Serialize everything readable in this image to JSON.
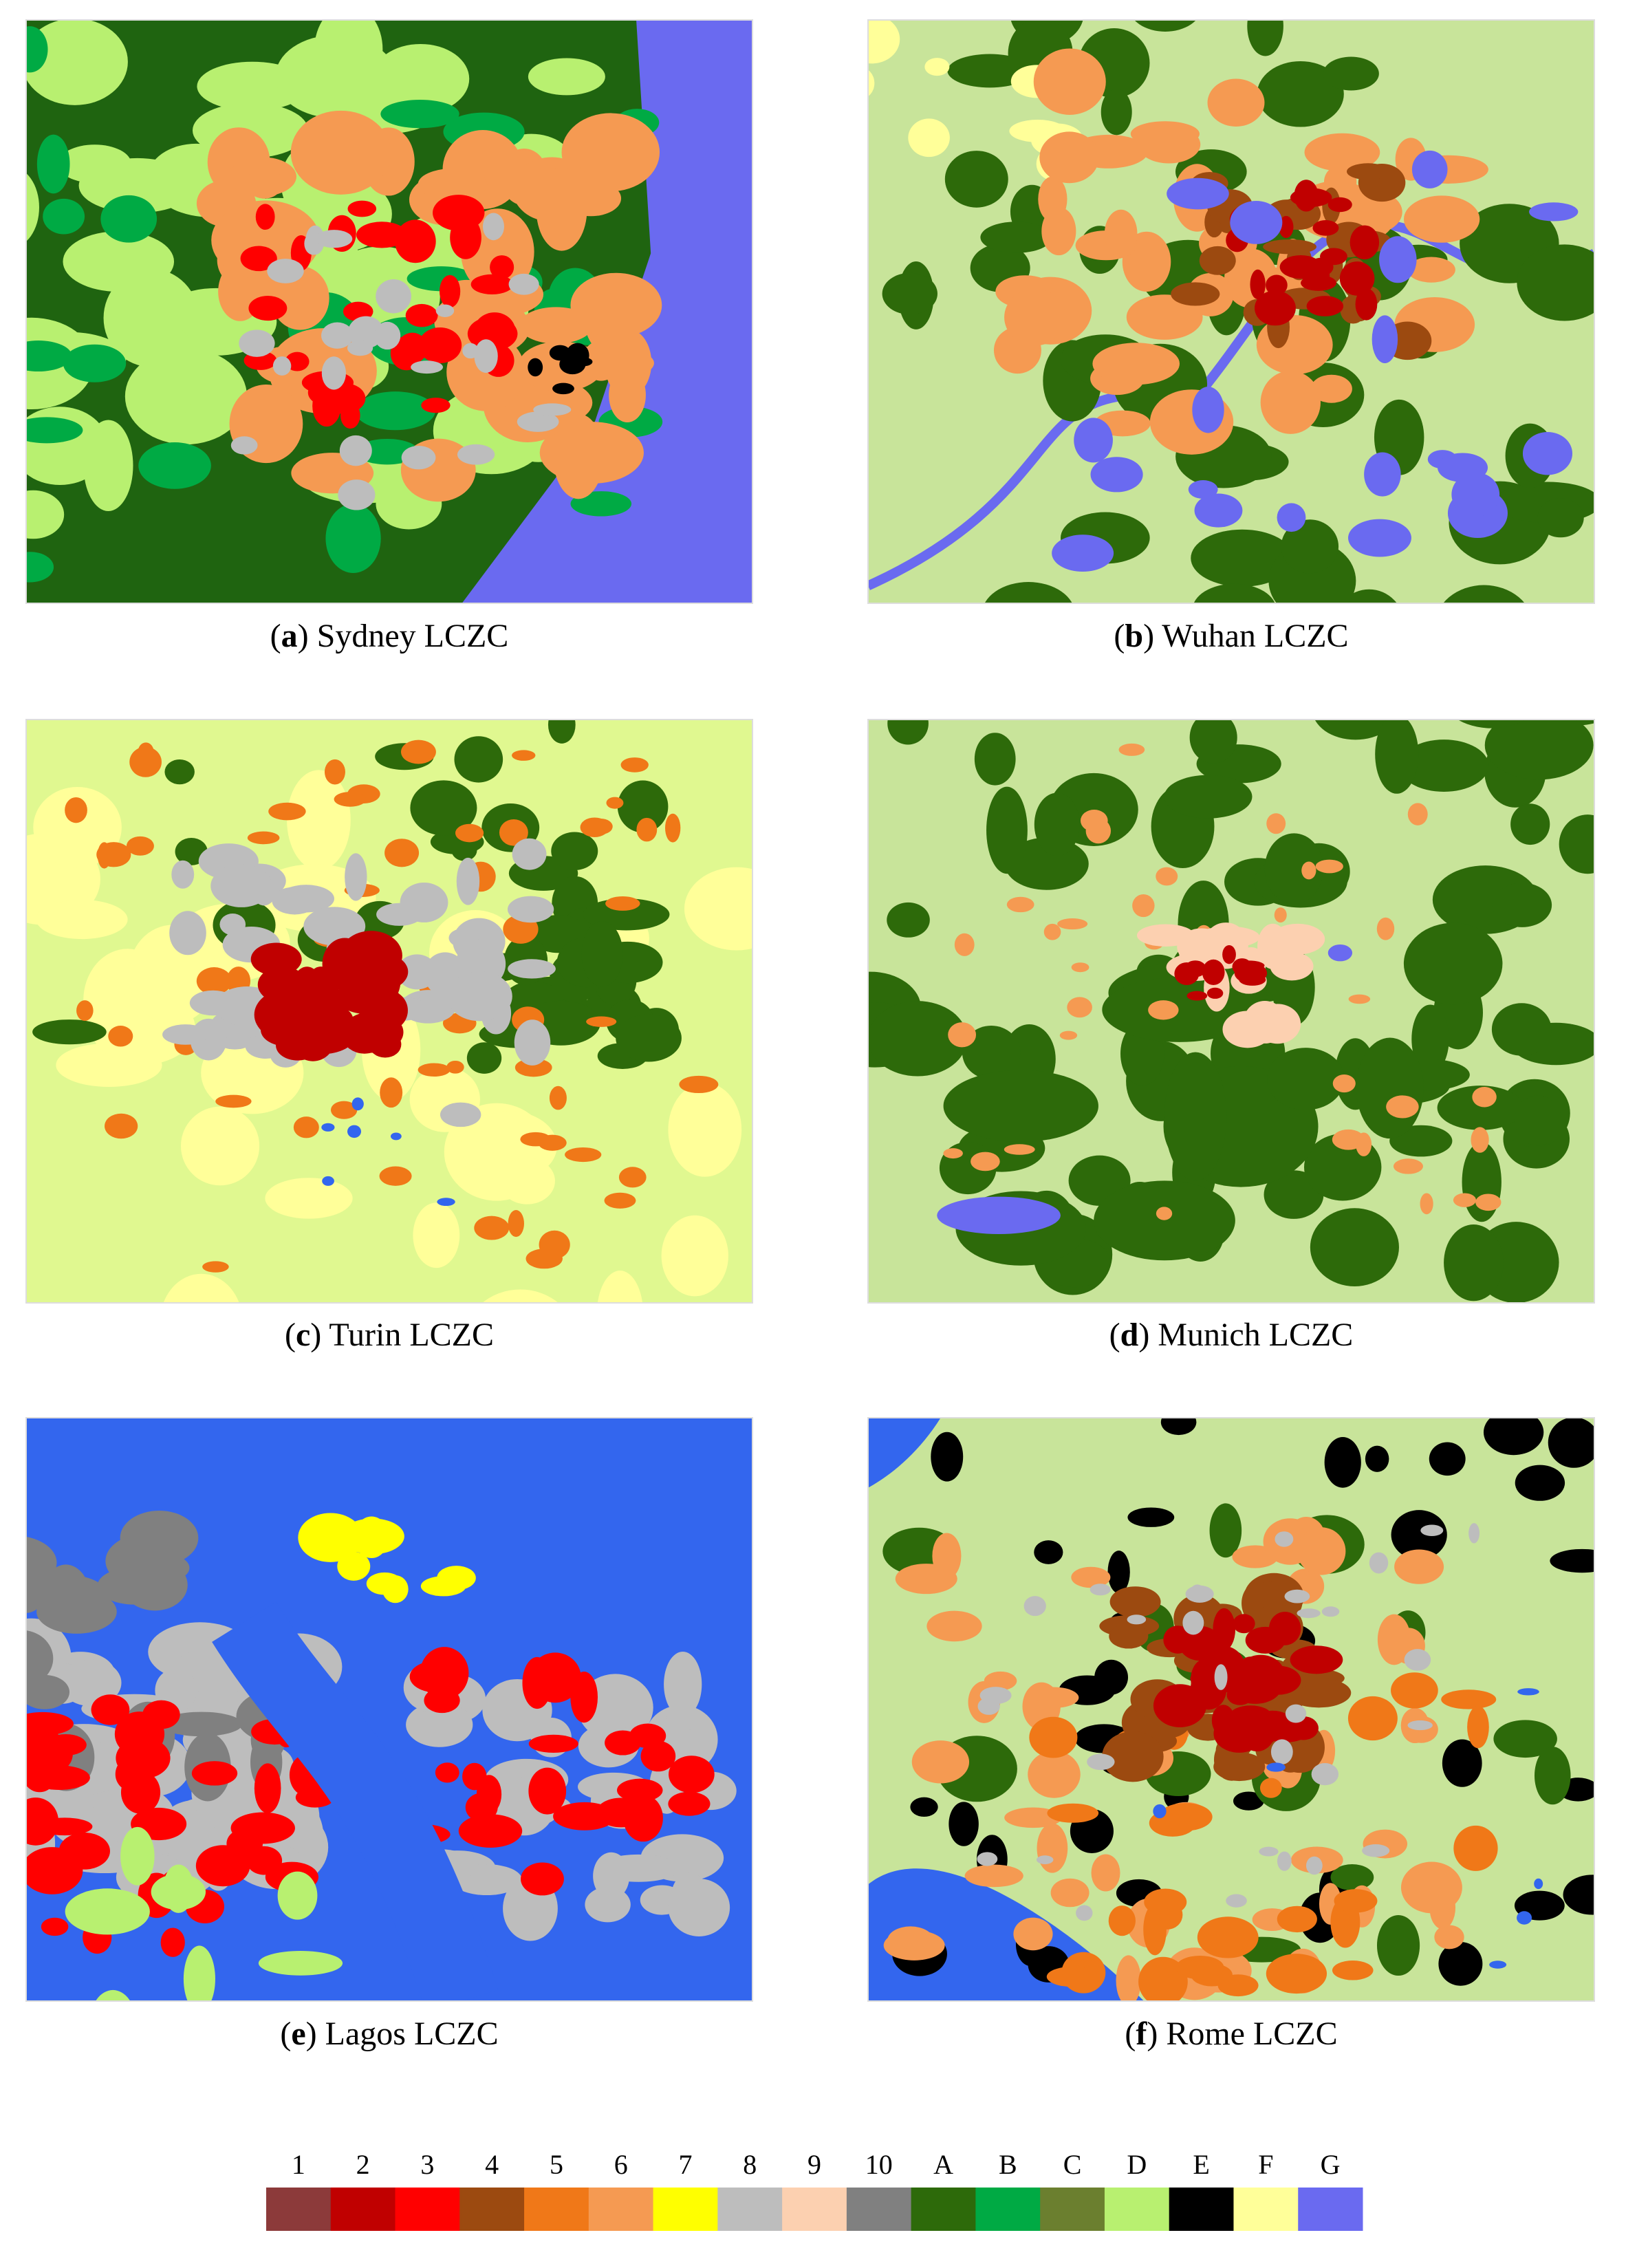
{
  "panels": [
    {
      "caption": [
        "(",
        "a",
        ") Sydney LCZC"
      ]
    },
    {
      "caption": [
        "(",
        "b",
        ") Wuhan LCZC"
      ]
    },
    {
      "caption": [
        "(",
        "c",
        ") Turin LCZC"
      ]
    },
    {
      "caption": [
        "(",
        "d",
        ") Munich LCZC"
      ]
    },
    {
      "caption": [
        "(",
        "e",
        ") Lagos LCZC"
      ]
    },
    {
      "caption": [
        "(",
        "f",
        ") Rome LCZC"
      ]
    }
  ],
  "legend": [
    {
      "label": "1",
      "color": "#8c3a3a"
    },
    {
      "label": "2",
      "color": "#c00000"
    },
    {
      "label": "3",
      "color": "#ff0000"
    },
    {
      "label": "4",
      "color": "#9c4a10"
    },
    {
      "label": "5",
      "color": "#f07818"
    },
    {
      "label": "6",
      "color": "#f59a52"
    },
    {
      "label": "7",
      "color": "#ffff00"
    },
    {
      "label": "8",
      "color": "#bdbdbd"
    },
    {
      "label": "9",
      "color": "#fcd0b0"
    },
    {
      "label": "10",
      "color": "#808080"
    },
    {
      "label": "A",
      "color": "#2d6a0a"
    },
    {
      "label": "B",
      "color": "#00aa44"
    },
    {
      "label": "C",
      "color": "#6b7f2f"
    },
    {
      "label": "D",
      "color": "#b8f070"
    },
    {
      "label": "E",
      "color": "#000000"
    },
    {
      "label": "F",
      "color": "#ffff99"
    },
    {
      "label": "G",
      "color": "#6a6af0"
    }
  ]
}
